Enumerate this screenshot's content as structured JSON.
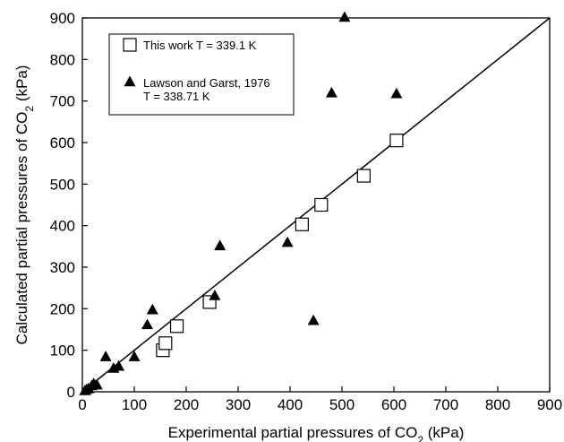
{
  "chart_data": {
    "type": "scatter",
    "xlabel": "Experimental partial pressures of CO",
    "xlabel_sub": "2",
    "xlabel_unit": " (kPa)",
    "ylabel": "Calculated partial pressures of CO",
    "ylabel_sub": "2",
    "ylabel_unit": " (kPa)",
    "xlim": [
      0,
      900
    ],
    "ylim": [
      0,
      900
    ],
    "xticks": [
      0,
      100,
      200,
      300,
      400,
      500,
      600,
      700,
      800,
      900
    ],
    "yticks": [
      0,
      100,
      200,
      300,
      400,
      500,
      600,
      700,
      800,
      900
    ],
    "grid": false,
    "legend_position": "top-left",
    "reference_line": {
      "x": [
        0,
        900
      ],
      "y": [
        0,
        900
      ]
    },
    "series": [
      {
        "name": "This work T = 339.1 K",
        "marker": "open-square",
        "x": [
          155,
          160,
          182,
          245,
          423,
          460,
          542,
          605
        ],
        "y": [
          100,
          117,
          158,
          216,
          403,
          450,
          520,
          605
        ]
      },
      {
        "name": "Lawson and Garst, 1976",
        "name_line2": "T = 338.71 K",
        "marker": "filled-triangle",
        "x": [
          5,
          8,
          12,
          18,
          22,
          28,
          45,
          60,
          70,
          100,
          125,
          135,
          255,
          265,
          395,
          445,
          480,
          505,
          605
        ],
        "y": [
          3,
          6,
          8,
          15,
          20,
          17,
          85,
          57,
          62,
          85,
          162,
          198,
          232,
          352,
          360,
          172,
          720,
          902,
          718
        ]
      }
    ]
  }
}
